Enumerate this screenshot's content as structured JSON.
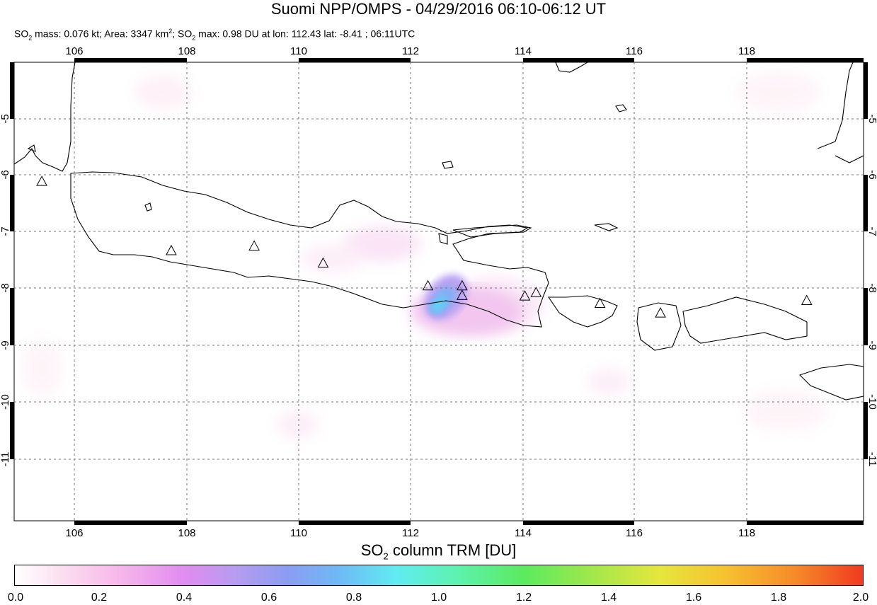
{
  "title": "Suomi NPP/OMPS - 04/29/2016 06:10-06:12 UT",
  "subtitle": {
    "mass_prefix": "SO",
    "mass_sub": "2",
    "mass_text": " mass: 0.076 kt; Area: 3347 km",
    "area_sup": "2",
    "max_prefix": "; SO",
    "max_sub": "2",
    "max_text": " max: 0.98 DU at lon: 112.43 lat: -8.41 ; 06:11UTC"
  },
  "map": {
    "lon_range": [
      105,
      120
    ],
    "lat_range": [
      -12,
      -4
    ],
    "lon_ticks": [
      "106",
      "108",
      "110",
      "112",
      "114",
      "116",
      "118"
    ],
    "lat_ticks": [
      "-5",
      "-6",
      "-7",
      "-8",
      "-9",
      "-10",
      "-11"
    ],
    "grid": "dotted",
    "volcano_marker": "triangle-icon",
    "volcanoes": [
      {
        "lon": 105.42,
        "lat": -6.1
      },
      {
        "lon": 107.73,
        "lat": -7.32
      },
      {
        "lon": 109.21,
        "lat": -7.24
      },
      {
        "lon": 110.44,
        "lat": -7.54
      },
      {
        "lon": 112.31,
        "lat": -7.94
      },
      {
        "lon": 112.92,
        "lat": -7.94
      },
      {
        "lon": 112.92,
        "lat": -8.11
      },
      {
        "lon": 114.04,
        "lat": -8.12
      },
      {
        "lon": 114.24,
        "lat": -8.06
      },
      {
        "lon": 115.38,
        "lat": -8.25
      },
      {
        "lon": 116.46,
        "lat": -8.42
      },
      {
        "lon": 119.07,
        "lat": -8.2
      }
    ],
    "so2_plume": [
      {
        "lon": 112.43,
        "lat": -8.41,
        "du": 0.98
      },
      {
        "lon": 112.6,
        "lat": -8.15,
        "du": 0.8
      },
      {
        "lon": 112.8,
        "lat": -7.95,
        "du": 0.55
      },
      {
        "lon": 112.2,
        "lat": -8.6,
        "du": 0.6
      }
    ]
  },
  "colorbar": {
    "title_prefix": "SO",
    "title_sub": "2",
    "title_text": " column TRM [DU]",
    "ticks": [
      "0.0",
      "0.2",
      "0.4",
      "0.6",
      "0.8",
      "1.0",
      "1.2",
      "1.4",
      "1.6",
      "1.8",
      "2.0"
    ],
    "range": [
      0,
      2
    ]
  }
}
